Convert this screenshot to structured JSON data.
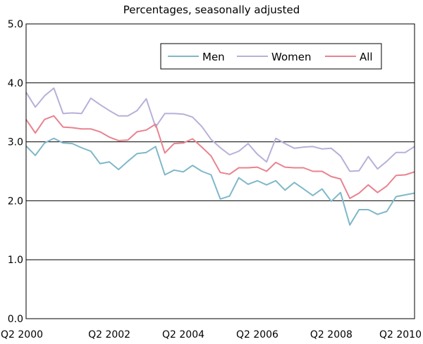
{
  "chart_data": {
    "type": "line",
    "title": "Percentages, seasonally adjusted",
    "xlabel": "",
    "ylabel": "",
    "ylim": [
      0,
      5
    ],
    "yticks": [
      "0.0",
      "1.0",
      "2.0",
      "3.0",
      "4.0",
      "5.0"
    ],
    "xticks": [
      "Q2 2000",
      "Q2 2002",
      "Q2 2004",
      "Q2 2006",
      "Q2 2008",
      "Q2 2010"
    ],
    "grid": "horizontal",
    "legend_position": "top-right",
    "x": [
      "Q1 2000",
      "Q2 2000",
      "Q3 2000",
      "Q4 2000",
      "Q1 2001",
      "Q2 2001",
      "Q3 2001",
      "Q4 2001",
      "Q1 2002",
      "Q2 2002",
      "Q3 2002",
      "Q4 2002",
      "Q1 2003",
      "Q2 2003",
      "Q3 2003",
      "Q4 2003",
      "Q1 2004",
      "Q2 2004",
      "Q3 2004",
      "Q4 2004",
      "Q1 2005",
      "Q2 2005",
      "Q3 2005",
      "Q4 2005",
      "Q1 2006",
      "Q2 2006",
      "Q3 2006",
      "Q4 2006",
      "Q1 2007",
      "Q2 2007",
      "Q3 2007",
      "Q4 2007",
      "Q1 2008",
      "Q2 2008",
      "Q3 2008",
      "Q4 2008",
      "Q1 2009",
      "Q2 2009",
      "Q3 2009",
      "Q4 2009",
      "Q1 2010",
      "Q2 2010",
      "Q3 2010"
    ],
    "series": [
      {
        "name": "Men",
        "color": "#7fb8c8",
        "values": [
          2.93,
          2.77,
          2.98,
          3.06,
          2.98,
          2.97,
          2.9,
          2.84,
          2.63,
          2.66,
          2.53,
          2.67,
          2.8,
          2.82,
          2.92,
          2.44,
          2.52,
          2.49,
          2.6,
          2.5,
          2.44,
          2.03,
          2.08,
          2.39,
          2.28,
          2.34,
          2.27,
          2.34,
          2.18,
          2.31,
          2.2,
          2.09,
          2.2,
          1.99,
          2.14,
          1.59,
          1.85,
          1.85,
          1.77,
          1.82,
          2.07,
          2.1,
          2.13
        ]
      },
      {
        "name": "Women",
        "color": "#b7b0d9",
        "values": [
          3.84,
          3.59,
          3.78,
          3.91,
          3.48,
          3.49,
          3.48,
          3.74,
          3.63,
          3.53,
          3.44,
          3.44,
          3.53,
          3.73,
          3.25,
          3.48,
          3.48,
          3.47,
          3.42,
          3.26,
          3.04,
          2.9,
          2.78,
          2.84,
          2.97,
          2.79,
          2.66,
          3.06,
          2.97,
          2.89,
          2.91,
          2.92,
          2.88,
          2.89,
          2.76,
          2.5,
          2.51,
          2.75,
          2.54,
          2.67,
          2.82,
          2.82,
          2.92
        ]
      },
      {
        "name": "All",
        "color": "#e8838f",
        "values": [
          3.38,
          3.15,
          3.38,
          3.44,
          3.25,
          3.24,
          3.22,
          3.22,
          3.17,
          3.08,
          3.02,
          3.03,
          3.17,
          3.2,
          3.3,
          2.81,
          2.97,
          2.98,
          3.05,
          2.91,
          2.76,
          2.48,
          2.45,
          2.56,
          2.56,
          2.57,
          2.5,
          2.65,
          2.57,
          2.56,
          2.56,
          2.5,
          2.5,
          2.41,
          2.37,
          2.04,
          2.13,
          2.27,
          2.14,
          2.25,
          2.43,
          2.44,
          2.49
        ]
      }
    ]
  }
}
